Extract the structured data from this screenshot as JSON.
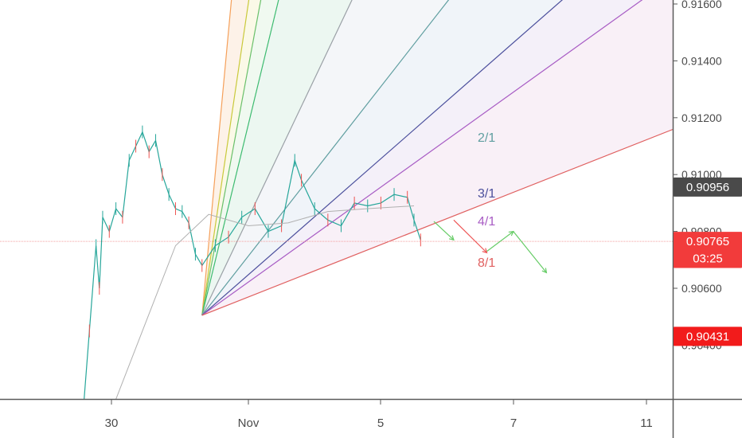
{
  "chart_data": {
    "type": "line",
    "title": "",
    "xlabel": "",
    "ylabel": "",
    "x_ticks": [
      "30",
      "Nov",
      "5",
      "7",
      "11"
    ],
    "y_ticks": [
      "0.91600",
      "0.91400",
      "0.91200",
      "0.91000",
      "0.90800",
      "0.90600",
      "0.90400"
    ],
    "ylim": [
      0.9015,
      0.9162
    ],
    "grid": false,
    "legend": "none",
    "price_series": {
      "name": "",
      "points": [
        [
          29.5,
          0.9015
        ],
        [
          29.6,
          0.9045
        ],
        [
          29.7,
          0.9075
        ],
        [
          29.75,
          0.906
        ],
        [
          29.8,
          0.9085
        ],
        [
          29.9,
          0.908
        ],
        [
          30.0,
          0.9088
        ],
        [
          30.1,
          0.9085
        ],
        [
          30.2,
          0.9105
        ],
        [
          30.3,
          0.911
        ],
        [
          30.4,
          0.9115
        ],
        [
          30.5,
          0.9108
        ],
        [
          30.6,
          0.9112
        ],
        [
          30.7,
          0.91
        ],
        [
          30.8,
          0.9093
        ],
        [
          30.9,
          0.9088
        ],
        [
          31.0,
          0.9087
        ],
        [
          31.1,
          0.9083
        ],
        [
          31.2,
          0.9072
        ],
        [
          31.3,
          0.9068
        ],
        [
          31.5,
          0.9075
        ],
        [
          31.7,
          0.9078
        ],
        [
          31.9,
          0.9085
        ],
        [
          32.1,
          0.9088
        ],
        [
          32.3,
          0.908
        ],
        [
          32.5,
          0.9082
        ],
        [
          32.7,
          0.9105
        ],
        [
          32.8,
          0.9098
        ],
        [
          33.0,
          0.9088
        ],
        [
          33.2,
          0.9084
        ],
        [
          33.4,
          0.9082
        ],
        [
          33.6,
          0.909
        ],
        [
          33.8,
          0.9089
        ],
        [
          34.0,
          0.909
        ],
        [
          34.2,
          0.9093
        ],
        [
          34.4,
          0.9092
        ],
        [
          34.5,
          0.9084
        ],
        [
          34.6,
          0.9077
        ]
      ]
    },
    "moving_average": {
      "name": "",
      "points": [
        [
          29.9,
          0.9015
        ],
        [
          30.4,
          0.9045
        ],
        [
          30.9,
          0.9075
        ],
        [
          31.4,
          0.9086
        ],
        [
          32.0,
          0.9082
        ],
        [
          32.6,
          0.9083
        ],
        [
          33.2,
          0.9087
        ],
        [
          33.8,
          0.9088
        ],
        [
          34.5,
          0.9089
        ]
      ]
    },
    "gann_fan": {
      "origin": [
        31.3,
        0.90505
      ],
      "lines": [
        {
          "label": "",
          "slope_per_day": 0.025,
          "color": "#f5a05a"
        },
        {
          "label": "",
          "slope_per_day": 0.0157,
          "color": "#c9c93a"
        },
        {
          "label": "",
          "slope_per_day": 0.0125,
          "color": "#6ac06a"
        },
        {
          "label": "",
          "slope_per_day": 0.0096,
          "color": "#3dbb70"
        },
        {
          "label": "",
          "slope_per_day": 0.0049,
          "color": "#9aa0a6"
        },
        {
          "label": "2/1",
          "slope_per_day": 0.00298,
          "color": "#5f9ea0"
        },
        {
          "label": "3/1",
          "slope_per_day": 0.00204,
          "color": "#4b4f9c"
        },
        {
          "label": "4/1",
          "slope_per_day": 0.00167,
          "color": "#a85cc4"
        },
        {
          "label": "8/1",
          "slope_per_day": 0.00092,
          "color": "#e06060"
        }
      ]
    },
    "arrows": [
      {
        "from": [
          34.8,
          0.90835
        ],
        "to": [
          35.1,
          0.9077
        ],
        "color": "#66cc66"
      },
      {
        "from": [
          35.1,
          0.9084
        ],
        "to": [
          35.6,
          0.90725
        ],
        "color": "#ee5555"
      },
      {
        "from": [
          35.6,
          0.9073
        ],
        "to": [
          36.0,
          0.908
        ],
        "color": "#66cc66"
      },
      {
        "from": [
          36.0,
          0.908
        ],
        "to": [
          36.5,
          0.90655
        ],
        "color": "#66cc66"
      }
    ],
    "price_tags": [
      {
        "value": "0.90956",
        "price": 0.90956,
        "color": "#4a4a4a"
      },
      {
        "value": "0.90765",
        "price": 0.90765,
        "color": "#f23b3b"
      },
      {
        "value": "03:25",
        "price": 0.90705,
        "color": "#f23b3b"
      },
      {
        "value": "0.90431",
        "price": 0.90431,
        "color": "#f21b1b"
      }
    ],
    "current_price": 0.90765
  }
}
